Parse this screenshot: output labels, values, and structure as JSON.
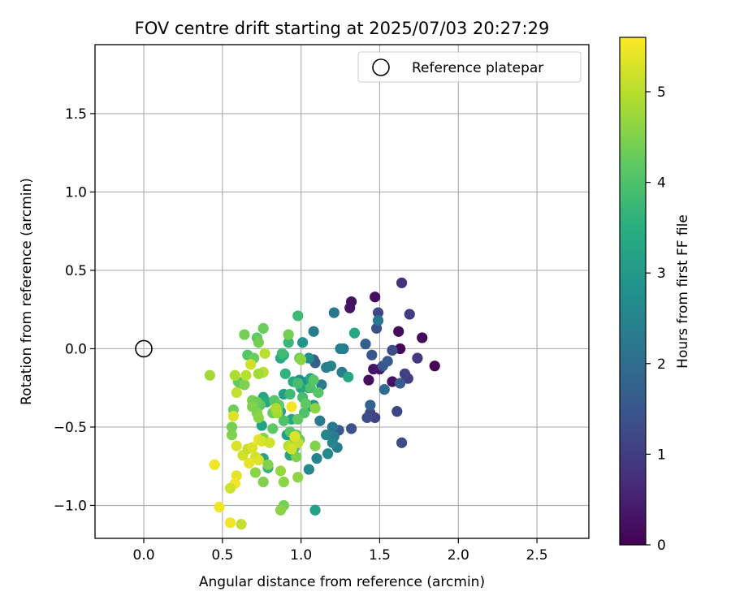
{
  "chart_data": {
    "type": "scatter",
    "title": "FOV centre drift starting at 2025/07/03 20:27:29",
    "xlabel": "Angular distance from reference (arcmin)",
    "ylabel": "Rotation from reference (arcmin)",
    "xlim": [
      -0.31,
      2.83
    ],
    "ylim": [
      -1.21,
      1.94
    ],
    "xticks": [
      0.0,
      0.5,
      1.0,
      1.5,
      2.0,
      2.5
    ],
    "xtick_labels": [
      "0.0",
      "0.5",
      "1.0",
      "1.5",
      "2.0",
      "2.5"
    ],
    "yticks": [
      -1.0,
      -0.5,
      0.0,
      0.5,
      1.0,
      1.5
    ],
    "ytick_labels": [
      "−1.0",
      "−0.5",
      "0.0",
      "0.5",
      "1.0",
      "1.5"
    ],
    "grid": true,
    "legend": {
      "position": "top-right",
      "entries": [
        "Reference platepar"
      ]
    },
    "reference_point": {
      "x": 0.0,
      "y": 0.0,
      "label": "Reference platepar",
      "marker": "open-circle"
    },
    "colorbar": {
      "label": "Hours from first FF file",
      "colormap": "viridis",
      "range": [
        0,
        5.6
      ],
      "ticks": [
        0,
        1,
        2,
        3,
        4,
        5
      ],
      "tick_labels": [
        "0",
        "1",
        "2",
        "3",
        "4",
        "5"
      ]
    },
    "series": [
      {
        "points": [
          [
            1.85,
            -0.11,
            0.05
          ],
          [
            1.77,
            0.07,
            0.1
          ],
          [
            1.62,
            0.11,
            0.15
          ],
          [
            1.63,
            0.0,
            0.1
          ],
          [
            1.47,
            0.33,
            0.2
          ],
          [
            1.32,
            0.3,
            0.25
          ],
          [
            1.31,
            0.26,
            0.3
          ],
          [
            1.58,
            -0.21,
            0.25
          ],
          [
            1.43,
            -0.2,
            0.2
          ],
          [
            1.46,
            -0.13,
            0.3
          ],
          [
            1.5,
            -0.13,
            0.35
          ],
          [
            1.64,
            0.42,
            0.8
          ],
          [
            1.74,
            -0.06,
            0.9
          ],
          [
            1.69,
            0.22,
            1.0
          ],
          [
            1.68,
            -0.19,
            1.0
          ],
          [
            1.66,
            -0.16,
            1.1
          ],
          [
            1.61,
            -0.4,
            1.2
          ],
          [
            1.58,
            -0.01,
            1.3
          ],
          [
            1.49,
            0.23,
            1.2
          ],
          [
            1.48,
            0.13,
            1.4
          ],
          [
            1.52,
            -0.11,
            1.5
          ],
          [
            1.55,
            -0.08,
            1.6
          ],
          [
            1.47,
            -0.44,
            1.1
          ],
          [
            1.44,
            -0.41,
            1.2
          ],
          [
            1.42,
            -0.44,
            1.3
          ],
          [
            1.64,
            -0.6,
            1.3
          ],
          [
            1.45,
            -0.04,
            1.5
          ],
          [
            1.41,
            0.03,
            1.7
          ],
          [
            1.63,
            -0.22,
            1.6
          ],
          [
            1.32,
            -0.51,
            1.4
          ],
          [
            1.24,
            -0.52,
            1.6
          ],
          [
            1.08,
            -0.07,
            1.6
          ],
          [
            1.09,
            -0.09,
            1.7
          ],
          [
            1.44,
            -0.36,
            1.8
          ],
          [
            1.53,
            -0.26,
            2.0
          ],
          [
            1.49,
            0.18,
            2.2
          ],
          [
            1.21,
            0.23,
            2.2
          ],
          [
            1.26,
            -0.15,
            2.3
          ],
          [
            1.27,
            0.0,
            2.2
          ],
          [
            1.25,
            0.0,
            2.4
          ],
          [
            1.19,
            -0.11,
            2.5
          ],
          [
            1.16,
            -0.12,
            2.4
          ],
          [
            1.13,
            -0.23,
            2.3
          ],
          [
            1.08,
            0.11,
            2.4
          ],
          [
            1.12,
            -0.46,
            2.3
          ],
          [
            1.2,
            -0.5,
            2.2
          ],
          [
            1.21,
            -0.56,
            2.3
          ],
          [
            1.23,
            -0.63,
            2.4
          ],
          [
            1.16,
            -0.55,
            2.5
          ],
          [
            1.2,
            -0.6,
            2.5
          ],
          [
            1.17,
            -0.67,
            2.6
          ],
          [
            1.1,
            -0.7,
            2.5
          ],
          [
            1.05,
            -0.77,
            2.6
          ],
          [
            1.05,
            -0.06,
            2.7
          ],
          [
            1.04,
            -0.21,
            2.8
          ],
          [
            1.01,
            0.04,
            2.9
          ],
          [
            0.99,
            -0.2,
            2.8
          ],
          [
            1.34,
            0.1,
            3.3
          ],
          [
            1.3,
            -0.18,
            3.3
          ],
          [
            1.09,
            -1.03,
            3.2
          ],
          [
            1.08,
            -0.36,
            3.0
          ],
          [
            1.07,
            -0.37,
            3.0
          ],
          [
            1.05,
            -0.25,
            3.1
          ],
          [
            1.06,
            -0.19,
            3.2
          ],
          [
            1.0,
            -0.25,
            3.3
          ],
          [
            0.95,
            -0.21,
            3.4
          ],
          [
            0.89,
            -0.29,
            3.1
          ],
          [
            0.87,
            -0.4,
            3.2
          ],
          [
            0.94,
            -0.45,
            3.3
          ],
          [
            0.91,
            -0.55,
            3.1
          ],
          [
            0.93,
            -0.68,
            3.2
          ],
          [
            0.76,
            -0.31,
            3.3
          ],
          [
            0.78,
            -0.34,
            3.4
          ],
          [
            0.75,
            -0.49,
            3.2
          ],
          [
            0.76,
            -0.7,
            3.3
          ],
          [
            0.79,
            -0.76,
            3.6
          ],
          [
            0.87,
            -0.06,
            3.4
          ],
          [
            0.89,
            -0.04,
            3.5
          ],
          [
            0.9,
            -0.16,
            3.6
          ],
          [
            0.98,
            0.21,
            3.8
          ],
          [
            0.92,
            0.04,
            3.7
          ],
          [
            0.88,
            -0.03,
            3.8
          ],
          [
            0.93,
            -0.29,
            3.8
          ],
          [
            0.98,
            -0.22,
            3.9
          ],
          [
            1.01,
            -0.31,
            3.9
          ],
          [
            1.02,
            -0.41,
            4.0
          ],
          [
            1.06,
            -0.25,
            4.0
          ],
          [
            1.08,
            -0.2,
            4.1
          ],
          [
            1.11,
            -0.28,
            4.1
          ],
          [
            1.03,
            -0.35,
            4.2
          ],
          [
            0.98,
            -0.45,
            4.2
          ],
          [
            0.97,
            -0.55,
            4.3
          ],
          [
            0.99,
            -0.58,
            4.3
          ],
          [
            0.92,
            -0.62,
            4.1
          ],
          [
            0.96,
            -0.63,
            4.0
          ],
          [
            0.83,
            -0.33,
            4.1
          ],
          [
            0.86,
            -0.36,
            4.2
          ],
          [
            0.82,
            -0.41,
            4.3
          ],
          [
            0.89,
            -0.46,
            4.0
          ],
          [
            0.93,
            -0.53,
            4.1
          ],
          [
            0.82,
            -0.51,
            4.2
          ],
          [
            0.74,
            -0.36,
            4.2
          ],
          [
            0.72,
            -0.34,
            4.3
          ],
          [
            0.69,
            -0.33,
            4.4
          ],
          [
            0.69,
            -0.37,
            4.5
          ],
          [
            0.66,
            -0.04,
            4.1
          ],
          [
            0.72,
            0.07,
            4.2
          ],
          [
            0.76,
            0.13,
            4.3
          ],
          [
            0.73,
            0.04,
            4.4
          ],
          [
            0.7,
            -0.06,
            4.3
          ],
          [
            0.64,
            0.09,
            4.4
          ],
          [
            0.6,
            -0.21,
            4.4
          ],
          [
            0.61,
            -0.22,
            4.2
          ],
          [
            0.64,
            -0.23,
            4.5
          ],
          [
            0.57,
            -0.39,
            4.3
          ],
          [
            0.56,
            -0.5,
            4.4
          ],
          [
            0.56,
            -0.55,
            4.5
          ],
          [
            0.72,
            -0.41,
            4.5
          ],
          [
            0.73,
            -0.44,
            4.6
          ],
          [
            0.76,
            -0.57,
            4.5
          ],
          [
            0.79,
            -0.74,
            4.5
          ],
          [
            0.76,
            -0.85,
            4.5
          ],
          [
            0.71,
            -0.79,
            4.6
          ],
          [
            0.89,
            -0.85,
            4.6
          ],
          [
            0.87,
            -0.78,
            4.7
          ],
          [
            0.89,
            -1.0,
            4.4
          ],
          [
            0.87,
            -1.03,
            4.6
          ],
          [
            0.99,
            -0.06,
            4.3
          ],
          [
            1.0,
            -0.07,
            4.6
          ],
          [
            0.92,
            0.09,
            4.4
          ],
          [
            0.94,
            -0.61,
            4.5
          ],
          [
            1.09,
            -0.62,
            4.5
          ],
          [
            1.09,
            -0.38,
            4.6
          ],
          [
            0.97,
            -0.69,
            4.5
          ],
          [
            0.98,
            -0.82,
            4.6
          ],
          [
            0.85,
            -0.41,
            4.8
          ],
          [
            0.84,
            -0.38,
            4.9
          ],
          [
            0.76,
            -0.15,
            5.0
          ],
          [
            0.73,
            -0.16,
            4.8
          ],
          [
            0.77,
            -0.03,
            5.0
          ],
          [
            0.68,
            -0.1,
            5.2
          ],
          [
            0.65,
            -0.17,
            5.0
          ],
          [
            0.59,
            -0.28,
            5.1
          ],
          [
            0.58,
            -0.17,
            4.9
          ],
          [
            0.42,
            -0.17,
            4.8
          ],
          [
            0.57,
            -0.43,
            5.3
          ],
          [
            0.59,
            -0.62,
            5.3
          ],
          [
            0.63,
            -0.68,
            5.2
          ],
          [
            0.66,
            -0.64,
            5.1
          ],
          [
            0.69,
            -0.63,
            5.3
          ],
          [
            0.71,
            -0.69,
            5.2
          ],
          [
            0.73,
            -0.58,
            5.4
          ],
          [
            0.75,
            -0.59,
            5.3
          ],
          [
            0.8,
            -0.6,
            5.2
          ],
          [
            0.67,
            -0.73,
            5.4
          ],
          [
            0.73,
            -0.71,
            5.3
          ],
          [
            0.59,
            -0.81,
            5.4
          ],
          [
            0.58,
            -0.86,
            5.5
          ],
          [
            0.55,
            -0.89,
            5.2
          ],
          [
            0.45,
            -0.74,
            5.5
          ],
          [
            0.48,
            -1.01,
            5.5
          ],
          [
            0.55,
            -1.11,
            5.5
          ],
          [
            0.62,
            -1.12,
            5.1
          ],
          [
            0.94,
            -0.37,
            5.5
          ],
          [
            0.98,
            -0.6,
            5.1
          ],
          [
            0.96,
            -0.56,
            5.3
          ],
          [
            0.92,
            -0.62,
            5.0
          ],
          [
            0.94,
            -0.64,
            5.2
          ]
        ]
      }
    ]
  }
}
